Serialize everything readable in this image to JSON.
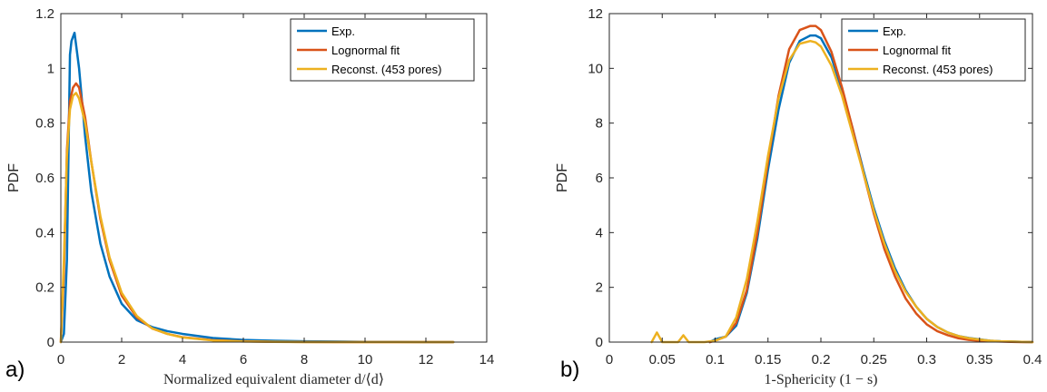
{
  "colors": {
    "exp": "#0072BD",
    "fit": "#D95319",
    "recon": "#EDB120",
    "axis": "#262626"
  },
  "chart_data": [
    {
      "type": "line",
      "panel_label": "a)",
      "xlabel": "Normalized equivalent diameter d/⟨d⟩",
      "ylabel": "PDF",
      "xlim": [
        0,
        14
      ],
      "ylim": [
        0,
        1.2
      ],
      "xticks": [
        0,
        2,
        4,
        6,
        8,
        10,
        12,
        14
      ],
      "xtick_labels": [
        "0",
        "2",
        "4",
        "6",
        "8",
        "10",
        "12",
        "14"
      ],
      "yticks": [
        0,
        0.2,
        0.4,
        0.6,
        0.8,
        1.0,
        1.2
      ],
      "ytick_labels": [
        "0",
        "0.2",
        "0.4",
        "0.6",
        "0.8",
        "1",
        "1.2"
      ],
      "grid": false,
      "legend_position": "top-right",
      "series": [
        {
          "name": "Exp.",
          "color_key": "exp",
          "x": [
            0,
            0.1,
            0.2,
            0.3,
            0.35,
            0.45,
            0.6,
            0.8,
            1.0,
            1.3,
            1.6,
            2.0,
            2.5,
            3.0,
            3.5,
            4.0,
            5.0,
            6.0,
            7.0,
            8.0,
            9.0,
            10.0,
            11.0,
            12.0,
            12.9
          ],
          "y": [
            0,
            0.03,
            0.3,
            1.05,
            1.1,
            1.13,
            1.0,
            0.75,
            0.55,
            0.36,
            0.24,
            0.14,
            0.08,
            0.055,
            0.04,
            0.03,
            0.015,
            0.008,
            0.005,
            0.003,
            0.002,
            0.001,
            0.001,
            0.0,
            0.0
          ]
        },
        {
          "name": "Lognormal fit",
          "color_key": "fit",
          "x": [
            0,
            0.1,
            0.2,
            0.3,
            0.4,
            0.5,
            0.6,
            0.8,
            1.0,
            1.3,
            1.6,
            2.0,
            2.5,
            3.0,
            3.5,
            4.0,
            5.0,
            6.0,
            7.0,
            8.0,
            9.0,
            10.0,
            11.0,
            12.0,
            12.9
          ],
          "y": [
            0,
            0.25,
            0.7,
            0.88,
            0.93,
            0.945,
            0.93,
            0.82,
            0.66,
            0.45,
            0.3,
            0.17,
            0.09,
            0.05,
            0.03,
            0.018,
            0.007,
            0.003,
            0.0012,
            0.0005,
            0.0002,
            0.0001,
            0.0,
            0.0,
            0.0
          ]
        },
        {
          "name": "Reconst. (453 pores)",
          "color_key": "recon",
          "x": [
            0,
            0.1,
            0.2,
            0.3,
            0.4,
            0.5,
            0.6,
            0.8,
            1.0,
            1.3,
            1.6,
            2.0,
            2.5,
            3.0,
            3.5,
            4.0,
            5.0,
            6.0,
            7.0,
            8.0,
            9.0,
            10.0,
            11.0,
            12.0,
            12.9
          ],
          "y": [
            0,
            0.3,
            0.68,
            0.85,
            0.9,
            0.91,
            0.89,
            0.8,
            0.66,
            0.46,
            0.31,
            0.18,
            0.095,
            0.05,
            0.03,
            0.017,
            0.006,
            0.002,
            0.001,
            0.0,
            0.0,
            0.0,
            0.0,
            0.0,
            0.0
          ]
        }
      ]
    },
    {
      "type": "line",
      "panel_label": "b)",
      "xlabel": "1-Sphericity (1 − s)",
      "ylabel": "PDF",
      "xlim": [
        0,
        0.4
      ],
      "ylim": [
        0,
        12
      ],
      "xticks": [
        0,
        0.05,
        0.1,
        0.15,
        0.2,
        0.25,
        0.3,
        0.35,
        0.4
      ],
      "xtick_labels": [
        "0",
        "0.05",
        "0.1",
        "0.15",
        "0.2",
        "0.25",
        "0.3",
        "0.35",
        "0.4"
      ],
      "yticks": [
        0,
        2,
        4,
        6,
        8,
        10,
        12
      ],
      "ytick_labels": [
        "0",
        "2",
        "4",
        "6",
        "8",
        "10",
        "12"
      ],
      "grid": false,
      "legend_position": "top-right",
      "series": [
        {
          "name": "Exp.",
          "color_key": "exp",
          "x": [
            0.095,
            0.1,
            0.11,
            0.12,
            0.13,
            0.14,
            0.15,
            0.16,
            0.17,
            0.18,
            0.19,
            0.195,
            0.2,
            0.21,
            0.22,
            0.23,
            0.24,
            0.25,
            0.26,
            0.27,
            0.28,
            0.29,
            0.3,
            0.31,
            0.32,
            0.33,
            0.34,
            0.35,
            0.36,
            0.37,
            0.38,
            0.39,
            0.4
          ],
          "y": [
            0,
            0.1,
            0.2,
            0.6,
            1.8,
            3.8,
            6.3,
            8.5,
            10.2,
            11.0,
            11.2,
            11.2,
            11.1,
            10.4,
            9.2,
            7.8,
            6.3,
            4.9,
            3.7,
            2.7,
            1.9,
            1.3,
            0.85,
            0.55,
            0.35,
            0.22,
            0.15,
            0.1,
            0.05,
            0.03,
            0.02,
            0.01,
            0.0
          ]
        },
        {
          "name": "Lognormal fit",
          "color_key": "fit",
          "x": [
            0.095,
            0.1,
            0.11,
            0.12,
            0.13,
            0.14,
            0.15,
            0.16,
            0.17,
            0.18,
            0.19,
            0.195,
            0.2,
            0.21,
            0.22,
            0.23,
            0.24,
            0.25,
            0.26,
            0.27,
            0.28,
            0.29,
            0.3,
            0.31,
            0.32,
            0.33,
            0.34,
            0.35,
            0.36,
            0.37,
            0.38,
            0.39,
            0.4
          ],
          "y": [
            0,
            0.05,
            0.2,
            0.7,
            1.9,
            4.0,
            6.6,
            9.0,
            10.7,
            11.4,
            11.55,
            11.55,
            11.4,
            10.6,
            9.3,
            7.8,
            6.2,
            4.7,
            3.4,
            2.4,
            1.6,
            1.05,
            0.65,
            0.4,
            0.25,
            0.14,
            0.08,
            0.05,
            0.03,
            0.02,
            0.01,
            0.0,
            0.0
          ]
        },
        {
          "name": "Reconst. (453 pores)",
          "color_key": "recon",
          "x": [
            0.04,
            0.045,
            0.05,
            0.055,
            0.06,
            0.065,
            0.07,
            0.075,
            0.08,
            0.09,
            0.1,
            0.11,
            0.12,
            0.13,
            0.14,
            0.15,
            0.16,
            0.17,
            0.18,
            0.19,
            0.195,
            0.2,
            0.21,
            0.22,
            0.23,
            0.24,
            0.25,
            0.26,
            0.27,
            0.28,
            0.29,
            0.3,
            0.31,
            0.32,
            0.33,
            0.34,
            0.35,
            0.36,
            0.37,
            0.38,
            0.39,
            0.4
          ],
          "y": [
            0,
            0.35,
            0.0,
            0.0,
            0.0,
            0.0,
            0.25,
            0.0,
            0.0,
            0.0,
            0.05,
            0.2,
            0.9,
            2.3,
            4.4,
            6.8,
            8.9,
            10.3,
            10.9,
            11.0,
            10.95,
            10.8,
            10.1,
            9.0,
            7.6,
            6.2,
            4.8,
            3.6,
            2.6,
            1.85,
            1.3,
            0.85,
            0.55,
            0.35,
            0.22,
            0.14,
            0.09,
            0.05,
            0.03,
            0.02,
            0.01,
            0.0
          ]
        }
      ]
    }
  ]
}
